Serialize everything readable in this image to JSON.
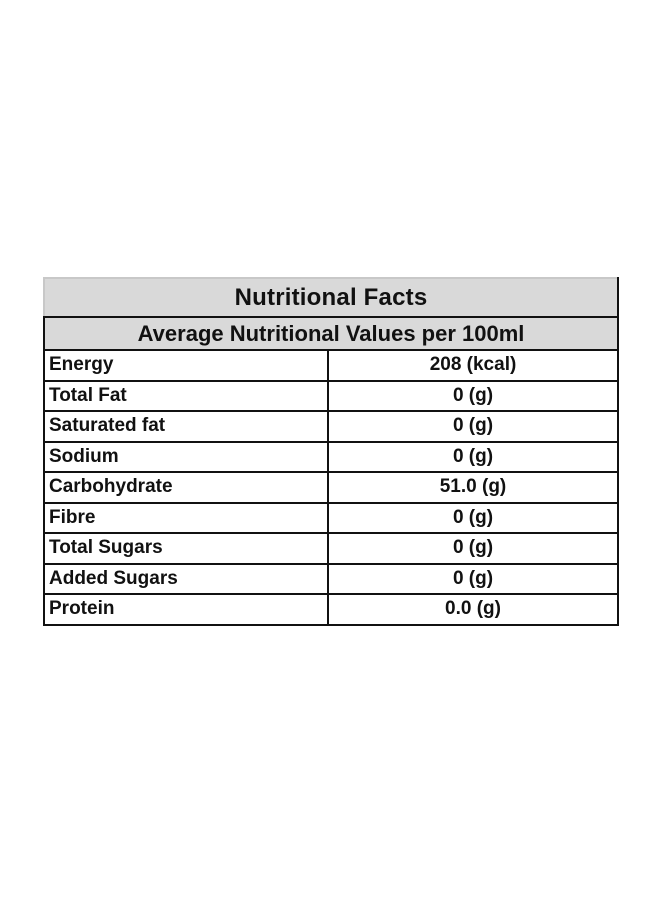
{
  "table": {
    "title": "Nutritional Facts",
    "subtitle": "Average Nutritional Values per 100ml",
    "rows": [
      {
        "label": "Energy",
        "value": "208 (kcal)"
      },
      {
        "label": "Total Fat",
        "value": "0 (g)"
      },
      {
        "label": "Saturated fat",
        "value": "0 (g)"
      },
      {
        "label": "Sodium",
        "value": "0 (g)"
      },
      {
        "label": "Carbohydrate",
        "value": "51.0 (g)"
      },
      {
        "label": "Fibre",
        "value": "0 (g)"
      },
      {
        "label": "Total Sugars",
        "value": "0 (g)"
      },
      {
        "label": "Added Sugars",
        "value": "0 (g)"
      },
      {
        "label": "Protein",
        "value": "0.0 (g)"
      }
    ]
  }
}
